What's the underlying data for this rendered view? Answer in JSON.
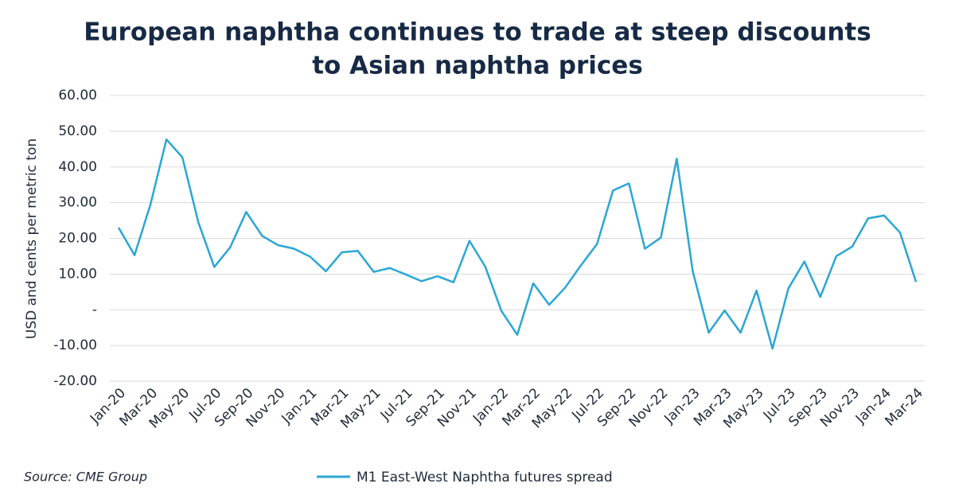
{
  "chart_data": {
    "type": "line",
    "title": [
      "European naphtha continues to trade at steep discounts",
      "to Asian naphtha prices"
    ],
    "y_label": "USD and cents per metric ton",
    "source": "Source: CME Group",
    "categories": [
      "Jan-20",
      null,
      "Mar-20",
      null,
      "May-20",
      null,
      "Jul-20",
      null,
      "Sep-20",
      null,
      "Nov-20",
      null,
      "Jan-21",
      null,
      "Mar-21",
      null,
      "May-21",
      null,
      "Jul-21",
      null,
      "Sep-21",
      null,
      "Nov-21",
      null,
      "Jan-22",
      null,
      "Mar-22",
      null,
      "May-22",
      null,
      "Jul-22",
      null,
      "Sep-22",
      null,
      "Nov-22",
      null,
      "Jan-23",
      null,
      "Mar-23",
      null,
      "May-23",
      null,
      "Jul-23",
      null,
      "Sep-23",
      null,
      "Nov-23",
      null,
      "Jan-24",
      null,
      "Mar-24"
    ],
    "series": [
      {
        "name": "M1 East-West Naphtha futures spread",
        "color": "#2aa6d6",
        "values": [
          23,
          15.3,
          29.5,
          47.7,
          42.7,
          24.5,
          12,
          17.5,
          27.4,
          20.7,
          18.1,
          17.1,
          14.9,
          10.8,
          16.1,
          16.5,
          10.6,
          11.7,
          9.9,
          8,
          9.4,
          7.7,
          19.3,
          12,
          -0.3,
          -7,
          7.4,
          1.4,
          6.2,
          12.5,
          18.4,
          33.4,
          35.4,
          17.1,
          20.2,
          42.3,
          10.8,
          -6.4,
          -0.2,
          -6.4,
          5.4,
          -10.9,
          6,
          13.5,
          3.6,
          15,
          17.7,
          25.6,
          26.4,
          21.6,
          7.8
        ]
      }
    ],
    "ylim": [
      -20,
      60
    ],
    "yticks": [
      {
        "value": -20,
        "label": "-20.00"
      },
      {
        "value": -10,
        "label": "-10.00"
      },
      {
        "value": 0,
        "label": "-"
      },
      {
        "value": 10,
        "label": "10.00"
      },
      {
        "value": 20,
        "label": "20.00"
      },
      {
        "value": 30,
        "label": "30.00"
      },
      {
        "value": 40,
        "label": "40.00"
      },
      {
        "value": 50,
        "label": "50.00"
      },
      {
        "value": 60,
        "label": "60.00"
      }
    ],
    "grid": true
  }
}
